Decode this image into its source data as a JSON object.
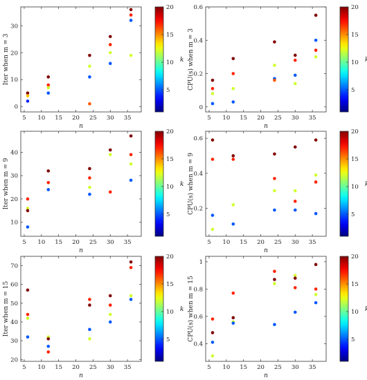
{
  "colorbar": {
    "ticks": [
      5,
      10,
      15,
      20
    ],
    "range": [
      1,
      20
    ],
    "colormap": "jet",
    "label": "k"
  },
  "chart_data": [
    {
      "type": "scatter",
      "ylabel": "Iter when m = 3",
      "xlabel": "n",
      "xlim": [
        4,
        39
      ],
      "ylim": [
        -2,
        37
      ],
      "xticks": [
        5,
        10,
        15,
        20,
        25,
        30,
        35
      ],
      "yticks": [
        0,
        10,
        20,
        30
      ],
      "points": [
        {
          "x": 6,
          "y": 5,
          "k": 20
        },
        {
          "x": 6,
          "y": 4,
          "k": 14
        },
        {
          "x": 6,
          "y": 2,
          "k": 4
        },
        {
          "x": 12,
          "y": 11,
          "k": 20
        },
        {
          "x": 12,
          "y": 8,
          "k": 17
        },
        {
          "x": 12,
          "y": 7,
          "k": 12
        },
        {
          "x": 12,
          "y": 5,
          "k": 5
        },
        {
          "x": 24,
          "y": 19,
          "k": 20
        },
        {
          "x": 24,
          "y": 15,
          "k": 12
        },
        {
          "x": 24,
          "y": 11,
          "k": 5
        },
        {
          "x": 24,
          "y": 1,
          "k": 16
        },
        {
          "x": 30,
          "y": 26,
          "k": 20
        },
        {
          "x": 30,
          "y": 23,
          "k": 17
        },
        {
          "x": 30,
          "y": 20,
          "k": 12
        },
        {
          "x": 30,
          "y": 16,
          "k": 5
        },
        {
          "x": 36,
          "y": 36,
          "k": 20
        },
        {
          "x": 36,
          "y": 34,
          "k": 17
        },
        {
          "x": 36,
          "y": 32,
          "k": 5
        },
        {
          "x": 36,
          "y": 19,
          "k": 12
        }
      ]
    },
    {
      "type": "scatter",
      "ylabel": "CPU(s) when m = 3",
      "xlabel": "n",
      "xlim": [
        4,
        39
      ],
      "ylim": [
        -0.03,
        0.6
      ],
      "xticks": [
        5,
        10,
        15,
        20,
        25,
        30,
        35
      ],
      "yticks": [
        0,
        0.2,
        0.4,
        0.6
      ],
      "points": [
        {
          "x": 6,
          "y": 0.16,
          "k": 20
        },
        {
          "x": 6,
          "y": 0.11,
          "k": 17
        },
        {
          "x": 6,
          "y": 0.08,
          "k": 12
        },
        {
          "x": 6,
          "y": 0.02,
          "k": 5
        },
        {
          "x": 12,
          "y": 0.29,
          "k": 20
        },
        {
          "x": 12,
          "y": 0.2,
          "k": 17
        },
        {
          "x": 12,
          "y": 0.11,
          "k": 12
        },
        {
          "x": 12,
          "y": 0.03,
          "k": 5
        },
        {
          "x": 24,
          "y": 0.39,
          "k": 20
        },
        {
          "x": 24,
          "y": 0.25,
          "k": 12
        },
        {
          "x": 24,
          "y": 0.17,
          "k": 5
        },
        {
          "x": 24,
          "y": 0.16,
          "k": 16
        },
        {
          "x": 30,
          "y": 0.31,
          "k": 20
        },
        {
          "x": 30,
          "y": 0.28,
          "k": 17
        },
        {
          "x": 30,
          "y": 0.19,
          "k": 5
        },
        {
          "x": 30,
          "y": 0.14,
          "k": 12
        },
        {
          "x": 36,
          "y": 0.55,
          "k": 20
        },
        {
          "x": 36,
          "y": 0.4,
          "k": 5
        },
        {
          "x": 36,
          "y": 0.34,
          "k": 17
        },
        {
          "x": 36,
          "y": 0.3,
          "k": 12
        }
      ]
    },
    {
      "type": "scatter",
      "ylabel": "Iter when m = 9",
      "xlabel": "n",
      "xlim": [
        4,
        39
      ],
      "ylim": [
        4,
        49
      ],
      "xticks": [
        5,
        10,
        15,
        20,
        25,
        30,
        35
      ],
      "yticks": [
        10,
        20,
        30,
        40
      ],
      "points": [
        {
          "x": 6,
          "y": 20,
          "k": 17
        },
        {
          "x": 6,
          "y": 16,
          "k": 12
        },
        {
          "x": 6,
          "y": 15,
          "k": 20
        },
        {
          "x": 6,
          "y": 8,
          "k": 5
        },
        {
          "x": 12,
          "y": 32,
          "k": 20
        },
        {
          "x": 12,
          "y": 27,
          "k": 17
        },
        {
          "x": 12,
          "y": 24,
          "k": 5
        },
        {
          "x": 24,
          "y": 33,
          "k": 20
        },
        {
          "x": 24,
          "y": 29,
          "k": 17
        },
        {
          "x": 24,
          "y": 25,
          "k": 12
        },
        {
          "x": 24,
          "y": 22,
          "k": 5
        },
        {
          "x": 30,
          "y": 41,
          "k": 20
        },
        {
          "x": 30,
          "y": 39,
          "k": 12
        },
        {
          "x": 30,
          "y": 23,
          "k": 17
        },
        {
          "x": 36,
          "y": 47,
          "k": 20
        },
        {
          "x": 36,
          "y": 39,
          "k": 17
        },
        {
          "x": 36,
          "y": 35,
          "k": 12
        },
        {
          "x": 36,
          "y": 28,
          "k": 5
        }
      ]
    },
    {
      "type": "scatter",
      "ylabel": "CPU(s) when m = 9",
      "xlabel": "n",
      "xlim": [
        4,
        39
      ],
      "ylim": [
        0.04,
        0.64
      ],
      "xticks": [
        5,
        10,
        15,
        20,
        25,
        30,
        35
      ],
      "yticks": [
        0.2,
        0.4,
        0.6
      ],
      "points": [
        {
          "x": 6,
          "y": 0.59,
          "k": 20
        },
        {
          "x": 6,
          "y": 0.48,
          "k": 17
        },
        {
          "x": 6,
          "y": 0.16,
          "k": 5
        },
        {
          "x": 6,
          "y": 0.08,
          "k": 12
        },
        {
          "x": 12,
          "y": 0.5,
          "k": 20
        },
        {
          "x": 12,
          "y": 0.48,
          "k": 17
        },
        {
          "x": 12,
          "y": 0.22,
          "k": 12
        },
        {
          "x": 12,
          "y": 0.11,
          "k": 5
        },
        {
          "x": 24,
          "y": 0.51,
          "k": 20
        },
        {
          "x": 24,
          "y": 0.37,
          "k": 17
        },
        {
          "x": 24,
          "y": 0.3,
          "k": 12
        },
        {
          "x": 24,
          "y": 0.19,
          "k": 5
        },
        {
          "x": 30,
          "y": 0.55,
          "k": 20
        },
        {
          "x": 30,
          "y": 0.3,
          "k": 12
        },
        {
          "x": 30,
          "y": 0.24,
          "k": 17
        },
        {
          "x": 30,
          "y": 0.19,
          "k": 5
        },
        {
          "x": 36,
          "y": 0.59,
          "k": 20
        },
        {
          "x": 36,
          "y": 0.39,
          "k": 12
        },
        {
          "x": 36,
          "y": 0.35,
          "k": 17
        },
        {
          "x": 36,
          "y": 0.17,
          "k": 5
        }
      ]
    },
    {
      "type": "scatter",
      "ylabel": "Iter when m = 15",
      "xlabel": "n",
      "xlim": [
        4,
        39
      ],
      "ylim": [
        19,
        75
      ],
      "xticks": [
        5,
        10,
        15,
        20,
        25,
        30,
        35
      ],
      "yticks": [
        20,
        30,
        40,
        50,
        60,
        70
      ],
      "points": [
        {
          "x": 6,
          "y": 57,
          "k": 20
        },
        {
          "x": 6,
          "y": 44,
          "k": 17
        },
        {
          "x": 6,
          "y": 42,
          "k": 12
        },
        {
          "x": 6,
          "y": 32,
          "k": 5
        },
        {
          "x": 12,
          "y": 32,
          "k": 12
        },
        {
          "x": 12,
          "y": 31,
          "k": 20
        },
        {
          "x": 12,
          "y": 27,
          "k": 5
        },
        {
          "x": 12,
          "y": 24,
          "k": 17
        },
        {
          "x": 24,
          "y": 52,
          "k": 17
        },
        {
          "x": 24,
          "y": 49,
          "k": 20
        },
        {
          "x": 24,
          "y": 36,
          "k": 5
        },
        {
          "x": 24,
          "y": 31,
          "k": 12
        },
        {
          "x": 30,
          "y": 54,
          "k": 20
        },
        {
          "x": 30,
          "y": 49,
          "k": 17
        },
        {
          "x": 30,
          "y": 44,
          "k": 12
        },
        {
          "x": 30,
          "y": 40,
          "k": 5
        },
        {
          "x": 36,
          "y": 72,
          "k": 20
        },
        {
          "x": 36,
          "y": 69,
          "k": 17
        },
        {
          "x": 36,
          "y": 54,
          "k": 12
        },
        {
          "x": 36,
          "y": 52,
          "k": 5
        }
      ]
    },
    {
      "type": "scatter",
      "ylabel": "CPU(s) when m = 15",
      "xlabel": "n",
      "xlim": [
        4,
        39
      ],
      "ylim": [
        0.27,
        1.04
      ],
      "xticks": [
        5,
        10,
        15,
        20,
        25,
        30,
        35
      ],
      "yticks": [
        0.4,
        0.6,
        0.8,
        1
      ],
      "points": [
        {
          "x": 6,
          "y": 0.58,
          "k": 17
        },
        {
          "x": 6,
          "y": 0.48,
          "k": 20
        },
        {
          "x": 6,
          "y": 0.41,
          "k": 5
        },
        {
          "x": 6,
          "y": 0.31,
          "k": 12
        },
        {
          "x": 12,
          "y": 0.77,
          "k": 17
        },
        {
          "x": 12,
          "y": 0.59,
          "k": 20
        },
        {
          "x": 12,
          "y": 0.56,
          "k": 12
        },
        {
          "x": 12,
          "y": 0.55,
          "k": 5
        },
        {
          "x": 24,
          "y": 0.93,
          "k": 17
        },
        {
          "x": 24,
          "y": 0.87,
          "k": 20
        },
        {
          "x": 24,
          "y": 0.84,
          "k": 12
        },
        {
          "x": 24,
          "y": 0.54,
          "k": 5
        },
        {
          "x": 30,
          "y": 0.9,
          "k": 12
        },
        {
          "x": 30,
          "y": 0.88,
          "k": 20
        },
        {
          "x": 30,
          "y": 0.81,
          "k": 17
        },
        {
          "x": 30,
          "y": 0.63,
          "k": 5
        },
        {
          "x": 36,
          "y": 0.98,
          "k": 20
        },
        {
          "x": 36,
          "y": 0.8,
          "k": 17
        },
        {
          "x": 36,
          "y": 0.76,
          "k": 12
        },
        {
          "x": 36,
          "y": 0.7,
          "k": 5
        }
      ]
    }
  ]
}
